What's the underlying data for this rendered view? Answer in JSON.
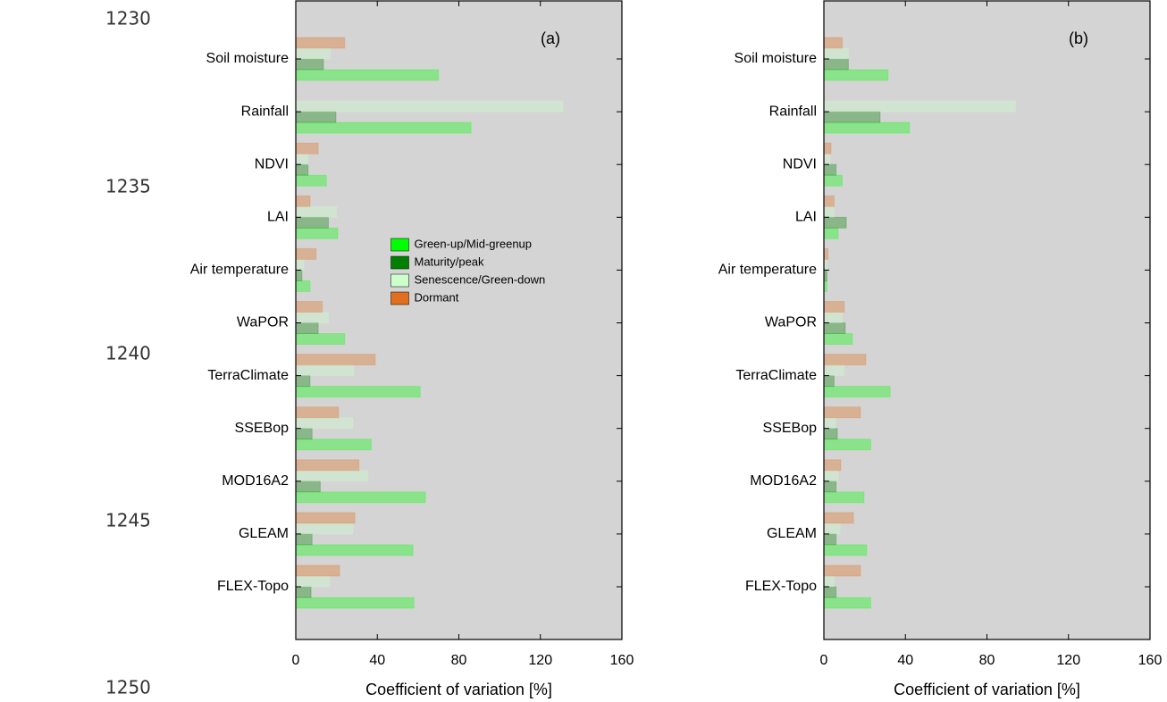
{
  "line_numbers": [
    "1230",
    "1235",
    "1240",
    "1245",
    "1250"
  ],
  "chart_data": [
    {
      "type": "barh",
      "panel_label": "(a)",
      "xlabel": "Coefficient of variation [%]",
      "categories": [
        "Soil moisture",
        "Rainfall",
        "NDVI",
        "LAI",
        "Air temperature",
        "WaPOR",
        "TerraClimate",
        "SSEBop",
        "MOD16A2",
        "GLEAM",
        "FLEX-Topo"
      ],
      "series": [
        {
          "name": "Green-up/Mid-greenup",
          "color": "#00ff00",
          "values": [
            70,
            86,
            15,
            20.6,
            7,
            24,
            61,
            37,
            63.6,
            57.5,
            58
          ]
        },
        {
          "name": "Maturity/peak",
          "color": "#007f00",
          "values": [
            13.6,
            19.7,
            6,
            16,
            3,
            11,
            7,
            8,
            12,
            8,
            7.5
          ]
        },
        {
          "name": "Senescence/Green-down",
          "color": "#ccffcc",
          "values": [
            17,
            131,
            6,
            20,
            4,
            16,
            28.5,
            28,
            35.5,
            28,
            16.7
          ]
        },
        {
          "name": "Dormant",
          "color": "#e07020",
          "values": [
            24,
            null,
            11,
            7,
            10,
            13,
            39,
            21,
            31,
            29,
            21.5
          ]
        }
      ],
      "xlim": [
        0,
        160
      ],
      "xticks": [
        0,
        40,
        80,
        120,
        160
      ],
      "legend": "center"
    },
    {
      "type": "barh",
      "panel_label": "(b)",
      "xlabel": "Coefficient of variation [%]",
      "categories": [
        "Soil moisture",
        "Rainfall",
        "NDVI",
        "LAI",
        "Air temperature",
        "WaPOR",
        "TerraClimate",
        "SSEBop",
        "MOD16A2",
        "GLEAM",
        "FLEX-Topo"
      ],
      "series": [
        {
          "color": "#00ff00",
          "values": [
            31.5,
            42,
            9,
            7,
            1.5,
            14,
            32.5,
            23,
            19.7,
            21,
            23
          ]
        },
        {
          "color": "#007f00",
          "values": [
            12,
            27.6,
            6,
            11,
            1.5,
            10.5,
            5,
            6.6,
            6,
            6,
            6
          ]
        },
        {
          "color": "#ccffcc",
          "values": [
            12,
            94,
            3,
            5,
            1.5,
            9,
            10,
            5.7,
            7,
            8,
            5
          ]
        },
        {
          "color": "#e07020",
          "values": [
            9,
            null,
            3.5,
            5,
            2,
            10,
            20.6,
            18,
            8.3,
            14.5,
            18
          ]
        }
      ],
      "xlim": [
        0,
        160
      ],
      "xticks": [
        0,
        40,
        80,
        120,
        160
      ]
    }
  ]
}
